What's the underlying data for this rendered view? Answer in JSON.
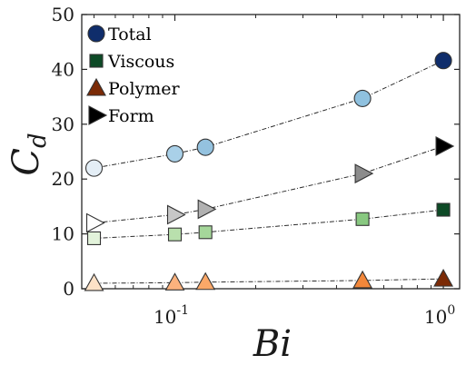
{
  "chart_data": {
    "type": "scatter",
    "xlabel": "Bi",
    "ylabel": "C",
    "ylabel_sub": "d",
    "xscale": "log",
    "xlim": [
      0.045,
      1.15
    ],
    "ylim": [
      0,
      50
    ],
    "x_ticks": [
      {
        "value": 0.1,
        "base": "10",
        "exp": "-1"
      },
      {
        "value": 1,
        "base": "10",
        "exp": "0"
      }
    ],
    "y_ticks": [
      0,
      10,
      20,
      30,
      40,
      50
    ],
    "grid": false,
    "legend_position": "top-left",
    "x": [
      0.05,
      0.1,
      0.13,
      0.5,
      1.0
    ],
    "series": [
      {
        "name": "Total",
        "marker": "circle",
        "values": [
          22.0,
          24.6,
          25.8,
          34.7,
          41.6
        ],
        "colors": [
          "#e4eef6",
          "#a9d0e8",
          "#94c2df",
          "#8fc1df",
          "#0f2d6b"
        ],
        "legend_color": "#0f2d6b"
      },
      {
        "name": "Viscous",
        "marker": "square",
        "values": [
          9.2,
          9.9,
          10.3,
          12.7,
          14.4
        ],
        "colors": [
          "#e3f3db",
          "#b9e0ad",
          "#a5d79a",
          "#88c880",
          "#0d4a26"
        ],
        "legend_color": "#0d4a26"
      },
      {
        "name": "Polymer",
        "marker": "triangle-up",
        "values": [
          1.0,
          1.1,
          1.2,
          1.5,
          1.8
        ],
        "colors": [
          "#fde2c7",
          "#fcb27d",
          "#fca868",
          "#f2873a",
          "#7b2a06"
        ],
        "legend_color": "#7b2a06"
      },
      {
        "name": "Form",
        "marker": "triangle-right",
        "values": [
          12.0,
          13.5,
          14.5,
          21.0,
          26.0
        ],
        "colors": [
          "#ffffff",
          "#c7c7c7",
          "#b1b1b1",
          "#8c8c8c",
          "#000000"
        ],
        "legend_color": "#000000"
      }
    ]
  }
}
